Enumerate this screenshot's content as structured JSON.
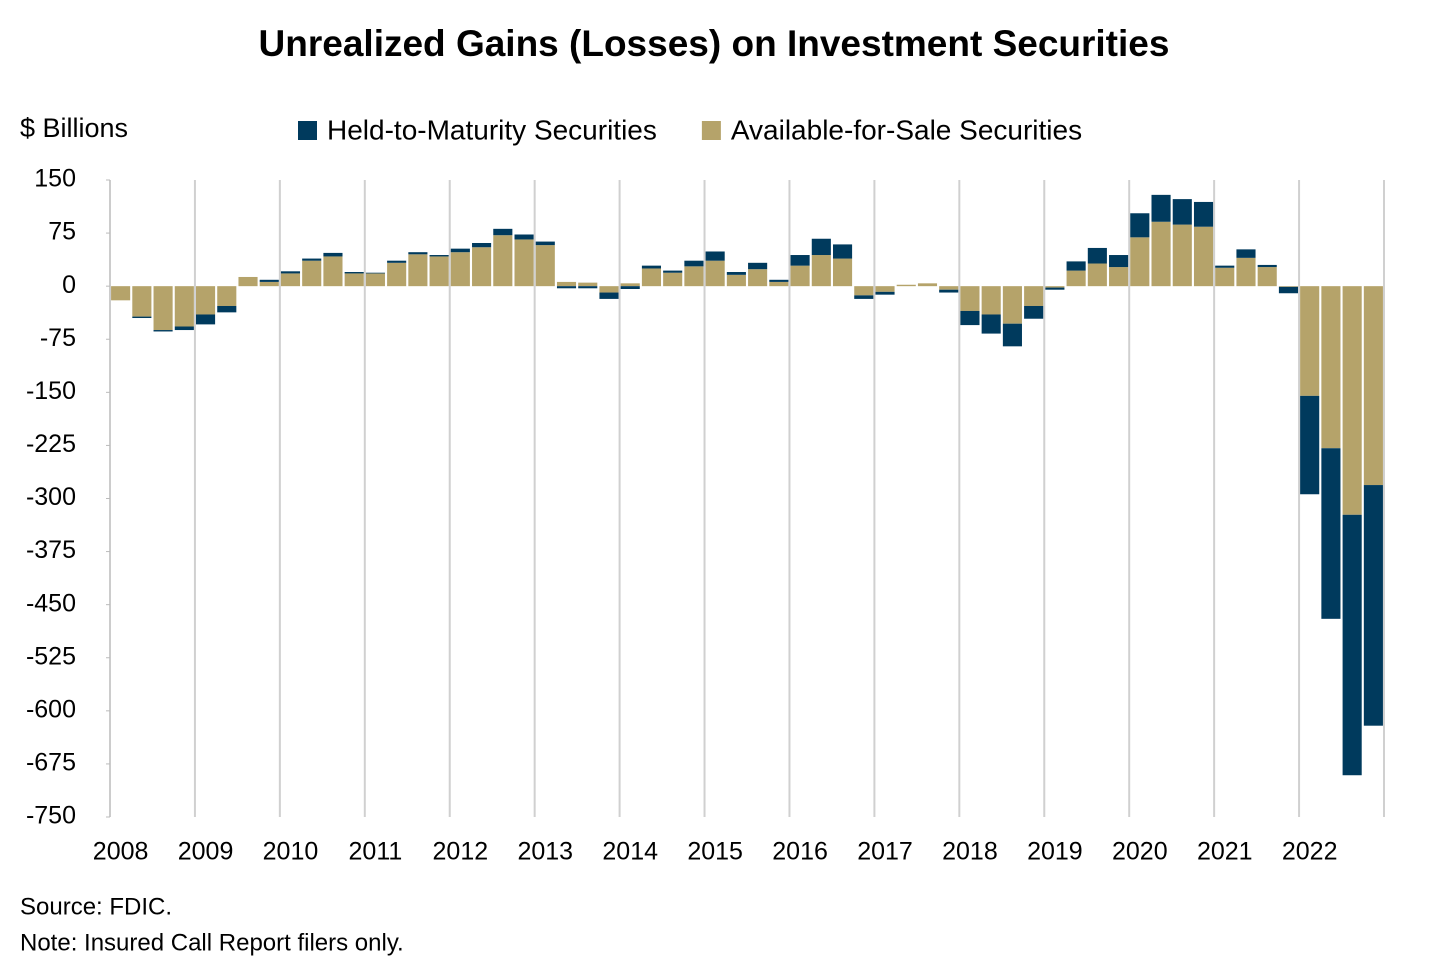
{
  "chart_data": {
    "type": "stacked_bar",
    "title": "Unrealized Gains (Losses) on Investment Securities",
    "y_label": "$ Billions",
    "source": "Source: FDIC.",
    "note": "Note: Insured Call Report filers only.",
    "categories": [
      "2008",
      null,
      null,
      null,
      "2009",
      null,
      null,
      null,
      "2010",
      null,
      null,
      null,
      "2011",
      null,
      null,
      null,
      "2012",
      null,
      null,
      null,
      "2013",
      null,
      null,
      null,
      "2014",
      null,
      null,
      null,
      "2015",
      null,
      null,
      null,
      "2016",
      null,
      null,
      null,
      "2017",
      null,
      null,
      null,
      "2018",
      null,
      null,
      null,
      "2019",
      null,
      null,
      null,
      "2020",
      null,
      null,
      null,
      "2021",
      null,
      null,
      null,
      "2022",
      null,
      null,
      null
    ],
    "series": [
      {
        "name": "Held-to-Maturity Securities",
        "color": "#003a5d",
        "values": [
          0,
          -2,
          -2,
          -5,
          -14,
          -9,
          0,
          3,
          3,
          3,
          5,
          2,
          1,
          3,
          3,
          2,
          5,
          6,
          9,
          7,
          5,
          -3,
          -3,
          -9,
          -4,
          4,
          3,
          8,
          13,
          4,
          9,
          3,
          15,
          23,
          20,
          -5,
          -4,
          0,
          0,
          -4,
          -20,
          -27,
          -32,
          -18,
          -3,
          13,
          22,
          17,
          34,
          38,
          36,
          35,
          3,
          12,
          3,
          -9,
          -139,
          -241,
          -368,
          -340
        ]
      },
      {
        "name": "Available-for-Sale Securities",
        "color": "#b5a36a",
        "values": [
          -20,
          -43,
          -62,
          -57,
          -40,
          -28,
          13,
          6,
          18,
          36,
          42,
          18,
          18,
          33,
          45,
          42,
          48,
          55,
          72,
          66,
          58,
          6,
          5,
          -9,
          4,
          25,
          19,
          28,
          36,
          16,
          24,
          6,
          29,
          44,
          39,
          -13,
          -8,
          2,
          4,
          -5,
          -35,
          -40,
          -53,
          -28,
          -2,
          22,
          32,
          27,
          69,
          91,
          87,
          84,
          26,
          40,
          27,
          -1,
          -155,
          -229,
          -323,
          -281
        ]
      }
    ],
    "stack_order": [
      1,
      0
    ],
    "ylim": [
      -750,
      150
    ],
    "yticks": [
      150,
      75,
      0,
      -75,
      -150,
      -225,
      -300,
      -375,
      -450,
      -525,
      -600,
      -675,
      -750
    ],
    "vertical_grid": true
  }
}
